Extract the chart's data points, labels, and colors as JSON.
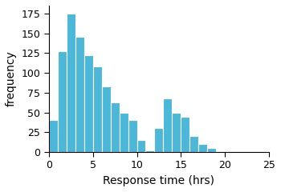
{
  "bin_edges": [
    0,
    1,
    2,
    3,
    4,
    5,
    6,
    7,
    8,
    9,
    10,
    11,
    12,
    13,
    14,
    15,
    16,
    17,
    18,
    19,
    20,
    21,
    22,
    23,
    24,
    25
  ],
  "frequencies": [
    40,
    127,
    175,
    146,
    122,
    108,
    83,
    63,
    50,
    40,
    15,
    2,
    30,
    68,
    50,
    45,
    20,
    10,
    5,
    1,
    0,
    1,
    0,
    0,
    0
  ],
  "bar_color": "#4cb8d9",
  "xlabel": "Response time (hrs)",
  "ylabel": "frequency",
  "xlim": [
    0,
    25
  ],
  "ylim": [
    0,
    185
  ],
  "xticks": [
    0,
    5,
    10,
    15,
    20,
    25
  ],
  "yticks": [
    0,
    25,
    50,
    75,
    100,
    125,
    150,
    175
  ],
  "background_color": "#ffffff",
  "edge_color": "#ffffff",
  "linewidth": 0.8,
  "xlabel_fontsize": 10,
  "ylabel_fontsize": 10,
  "tick_labelsize": 9
}
